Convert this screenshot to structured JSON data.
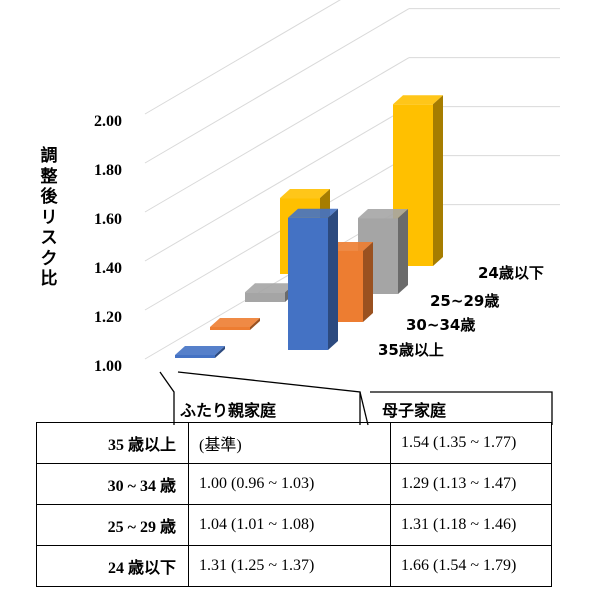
{
  "chart_data": {
    "type": "bar",
    "ylabel": "調整後リスク比",
    "ylim": [
      1.0,
      2.0
    ],
    "yticks": [
      "1.00",
      "1.20",
      "1.40",
      "1.60",
      "1.80",
      "2.00"
    ],
    "categories": [
      "ふたり親家庭",
      "母子家庭"
    ],
    "series": [
      {
        "name": "35歳以上",
        "values": [
          1.0,
          1.54
        ],
        "color": "#4472C4"
      },
      {
        "name": "30~34歳",
        "values": [
          1.0,
          1.29
        ],
        "color": "#ED7D31"
      },
      {
        "name": "25~29歳",
        "values": [
          1.04,
          1.31
        ],
        "color": "#A5A5A5"
      },
      {
        "name": "24歳以下",
        "values": [
          1.31,
          1.66
        ],
        "color": "#FFC000"
      }
    ]
  },
  "table": {
    "rows": [
      {
        "label": "35 歳以上",
        "two_parent": "(基準)",
        "single_mother": "1.54 (1.35 ~ 1.77)"
      },
      {
        "label": "30 ~ 34 歳",
        "two_parent": "1.00 (0.96 ~ 1.03)",
        "single_mother": "1.29 (1.13 ~ 1.47)"
      },
      {
        "label": "25 ~ 29 歳",
        "two_parent": "1.04 (1.01 ~ 1.08)",
        "single_mother": "1.31 (1.18 ~ 1.46)"
      },
      {
        "label": "24 歳以下",
        "two_parent": "1.31 (1.25 ~ 1.37)",
        "single_mother": "1.66 (1.54 ~ 1.79)"
      }
    ]
  }
}
